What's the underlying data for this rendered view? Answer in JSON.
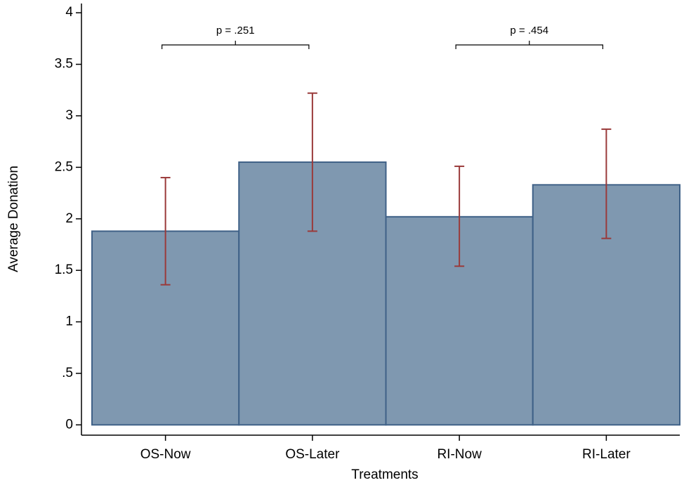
{
  "chart_data": {
    "type": "bar",
    "xlabel": "Treatments",
    "ylabel": "Average Donation",
    "categories": [
      "OS-Now",
      "OS-Later",
      "RI-Now",
      "RI-Later"
    ],
    "values": [
      1.88,
      2.55,
      2.02,
      2.33
    ],
    "err_low": [
      1.36,
      1.88,
      1.54,
      1.81
    ],
    "err_high": [
      2.4,
      3.22,
      2.51,
      2.87
    ],
    "color": "#7f98b0",
    "edge_color": "#3f6187",
    "error_color": "#9a3a3a",
    "ylim": [
      -0.1,
      4.09
    ],
    "yticks": [
      0,
      {
        "value": 0.5,
        "label": ".5"
      },
      1,
      1.5,
      2,
      2.5,
      3,
      3.5,
      4
    ],
    "annotations": [
      "p = .251",
      "p = .454"
    ]
  }
}
